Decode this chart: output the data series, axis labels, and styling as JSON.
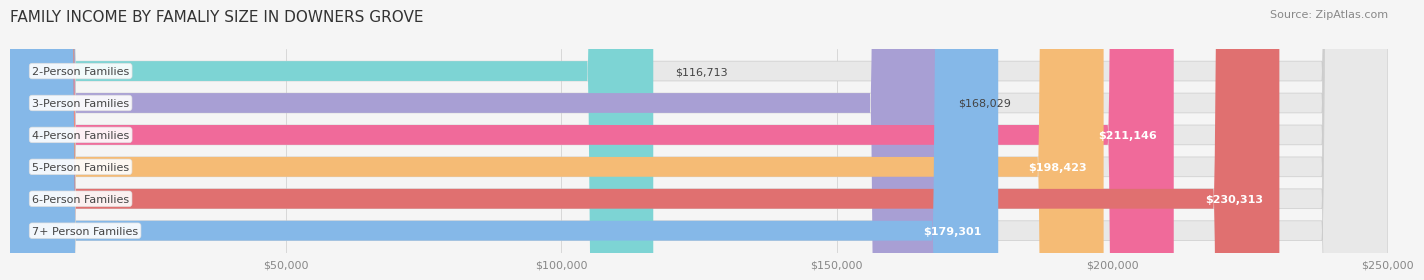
{
  "title": "FAMILY INCOME BY FAMALIY SIZE IN DOWNERS GROVE",
  "source": "Source: ZipAtlas.com",
  "categories": [
    "2-Person Families",
    "3-Person Families",
    "4-Person Families",
    "5-Person Families",
    "6-Person Families",
    "7+ Person Families"
  ],
  "values": [
    116713,
    168029,
    211146,
    198423,
    230313,
    179301
  ],
  "bar_colors": [
    "#7dd4d4",
    "#a89fd4",
    "#f06a9a",
    "#f5bb75",
    "#e07070",
    "#85b8e8"
  ],
  "label_colors": [
    "#555555",
    "#555555",
    "#ffffff",
    "#ffffff",
    "#ffffff",
    "#ffffff"
  ],
  "value_labels": [
    "$116,713",
    "$168,029",
    "$211,146",
    "$198,423",
    "$230,313",
    "$179,301"
  ],
  "xmin": 0,
  "xmax": 250000,
  "xticks": [
    0,
    50000,
    100000,
    150000,
    200000,
    250000
  ],
  "xtick_labels": [
    "",
    "$50,000",
    "$100,000",
    "$150,000",
    "$200,000",
    "$250,000"
  ],
  "background_color": "#f5f5f5",
  "bar_background_color": "#e8e8e8",
  "title_fontsize": 11,
  "source_fontsize": 8,
  "label_fontsize": 8,
  "value_fontsize": 8
}
